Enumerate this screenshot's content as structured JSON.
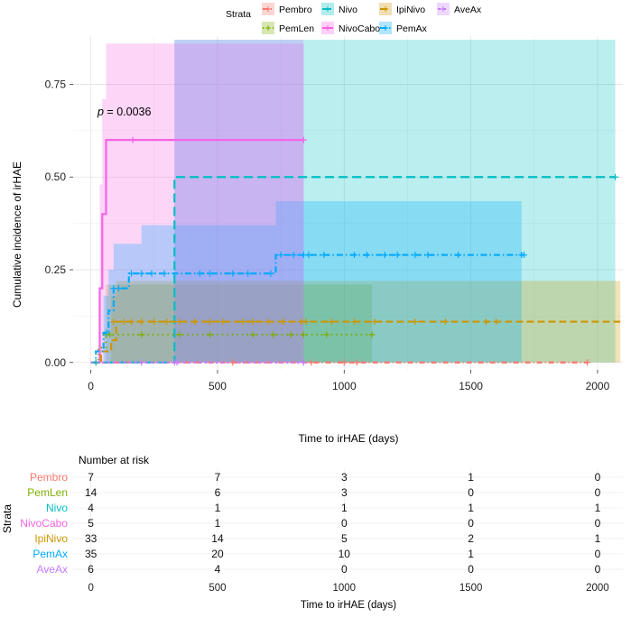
{
  "chart_data": [
    {
      "type": "line",
      "subtype": "cumulative-incidence-step",
      "title": "",
      "xlabel": "Time to irHAE (days)",
      "ylabel": "Cumulative incidence of irHAE",
      "xlim": [
        -70,
        2100
      ],
      "ylim": [
        -0.02,
        0.88
      ],
      "x_ticks": [
        0,
        500,
        1000,
        1500,
        2000
      ],
      "y_ticks": [
        0.0,
        0.25,
        0.5,
        0.75
      ],
      "x_tick_labels": [
        "0",
        "500",
        "1000",
        "1500",
        "2000"
      ],
      "y_tick_labels": [
        "0.00",
        "0.25",
        "0.50",
        "0.75"
      ],
      "grid": true,
      "annotation": {
        "prefix": "p",
        "text": " = 0.0036",
        "x": 30,
        "y": 0.735
      },
      "legend": {
        "title": "Strata",
        "placement": "top",
        "labels": [
          "Pembro",
          "Nivo",
          "IpiNivo",
          "AveAx",
          "PemLen",
          "NivoCabo",
          "PemAx"
        ]
      },
      "series": [
        {
          "name": "Pembro",
          "color": "#F8766D",
          "dash": "6 3 1 3",
          "steps": [
            [
              0,
              0
            ],
            [
              1960,
              0
            ]
          ],
          "censors": [
            [
              20,
              0
            ],
            [
              560,
              0
            ],
            [
              870,
              0
            ],
            [
              1000,
              0
            ],
            [
              1050,
              0
            ],
            [
              1960,
              0
            ]
          ],
          "ci_steps": []
        },
        {
          "name": "PemLen",
          "color": "#7CAE00",
          "dash": "1.5 4",
          "steps": [
            [
              0,
              0
            ],
            [
              30,
              0.04
            ],
            [
              60,
              0.075
            ],
            [
              1110,
              0.075
            ]
          ],
          "censors": [
            [
              60,
              0.075
            ],
            [
              75,
              0.075
            ],
            [
              200,
              0.075
            ],
            [
              350,
              0.075
            ],
            [
              470,
              0.075
            ],
            [
              640,
              0.075
            ],
            [
              720,
              0.075
            ],
            [
              790,
              0.075
            ],
            [
              840,
              0.075
            ],
            [
              930,
              0.075
            ],
            [
              1110,
              0.075
            ]
          ],
          "ci_steps": [
            [
              0,
              0,
              0
            ],
            [
              60,
              0,
              0.21
            ],
            [
              1110,
              0,
              0.21
            ]
          ]
        },
        {
          "name": "Nivo",
          "color": "#00BFC4",
          "dash": "10 5",
          "steps": [
            [
              0,
              0
            ],
            [
              330,
              0.5
            ],
            [
              2070,
              0.5
            ]
          ],
          "censors": [
            [
              20,
              0
            ],
            [
              2070,
              0.5
            ]
          ],
          "ci_steps": [
            [
              0,
              0,
              0
            ],
            [
              330,
              0,
              0.87
            ],
            [
              2070,
              0,
              0.87
            ]
          ]
        },
        {
          "name": "NivoCabo",
          "color": "#F564E3",
          "dash": "",
          "steps": [
            [
              0,
              0
            ],
            [
              35,
              0.2
            ],
            [
              45,
              0.4
            ],
            [
              60,
              0.6
            ],
            [
              840,
              0.6
            ]
          ],
          "censors": [
            [
              165,
              0.6
            ],
            [
              840,
              0.6
            ]
          ],
          "ci_steps": [
            [
              0,
              0,
              0
            ],
            [
              35,
              0,
              0.48
            ],
            [
              45,
              0,
              0.71
            ],
            [
              60,
              0,
              0.86
            ],
            [
              840,
              0,
              0.86
            ]
          ]
        },
        {
          "name": "IpiNivo",
          "color": "#CD9600",
          "dash": "8 4",
          "steps": [
            [
              0,
              0
            ],
            [
              40,
              0.03
            ],
            [
              80,
              0.06
            ],
            [
              100,
              0.11
            ],
            [
              2090,
              0.11
            ]
          ],
          "censors": [
            [
              90,
              0.11
            ],
            [
              130,
              0.11
            ],
            [
              160,
              0.11
            ],
            [
              200,
              0.11
            ],
            [
              250,
              0.11
            ],
            [
              300,
              0.11
            ],
            [
              350,
              0.11
            ],
            [
              410,
              0.11
            ],
            [
              470,
              0.11
            ],
            [
              520,
              0.11
            ],
            [
              600,
              0.11
            ],
            [
              640,
              0.11
            ],
            [
              700,
              0.11
            ],
            [
              760,
              0.11
            ],
            [
              830,
              0.11
            ],
            [
              850,
              0.11
            ],
            [
              950,
              0.11
            ],
            [
              1040,
              0.11
            ],
            [
              1120,
              0.11
            ],
            [
              1280,
              0.11
            ],
            [
              1400,
              0.11
            ],
            [
              1560,
              0.11
            ],
            [
              1600,
              0.11
            ]
          ],
          "ci_steps": [
            [
              0,
              0,
              0
            ],
            [
              80,
              0,
              0.18
            ],
            [
              100,
              0,
              0.22
            ],
            [
              2090,
              0,
              0.22
            ]
          ]
        },
        {
          "name": "PemAx",
          "color": "#00A9FF",
          "dash": "7 3 1.5 3",
          "steps": [
            [
              0,
              0
            ],
            [
              20,
              0.03
            ],
            [
              50,
              0.08
            ],
            [
              70,
              0.14
            ],
            [
              90,
              0.2
            ],
            [
              150,
              0.24
            ],
            [
              330,
              0.24
            ],
            [
              730,
              0.29
            ],
            [
              1710,
              0.29
            ]
          ],
          "censors": [
            [
              60,
              0.08
            ],
            [
              90,
              0.2
            ],
            [
              110,
              0.2
            ],
            [
              160,
              0.24
            ],
            [
              200,
              0.24
            ],
            [
              240,
              0.24
            ],
            [
              290,
              0.24
            ],
            [
              430,
              0.24
            ],
            [
              470,
              0.24
            ],
            [
              560,
              0.24
            ],
            [
              620,
              0.24
            ],
            [
              710,
              0.24
            ],
            [
              750,
              0.29
            ],
            [
              800,
              0.29
            ],
            [
              840,
              0.29
            ],
            [
              860,
              0.29
            ],
            [
              920,
              0.29
            ],
            [
              1040,
              0.29
            ],
            [
              1090,
              0.29
            ],
            [
              1160,
              0.29
            ],
            [
              1210,
              0.29
            ],
            [
              1280,
              0.29
            ],
            [
              1330,
              0.29
            ],
            [
              1450,
              0.29
            ],
            [
              1700,
              0.29
            ],
            [
              1710,
              0.29
            ]
          ],
          "ci_steps": [
            [
              0,
              0,
              0
            ],
            [
              50,
              0,
              0.18
            ],
            [
              70,
              0,
              0.25
            ],
            [
              90,
              0,
              0.32
            ],
            [
              200,
              0,
              0.37
            ],
            [
              330,
              0,
              0.37
            ],
            [
              730,
              0,
              0.435
            ],
            [
              1700,
              0,
              0.435
            ]
          ]
        },
        {
          "name": "AveAx",
          "color": "#C77CFF",
          "dash": "3 3",
          "steps": [
            [
              0,
              0
            ],
            [
              840,
              0
            ]
          ],
          "censors": [
            [
              200,
              0
            ],
            [
              330,
              0
            ],
            [
              340,
              0
            ],
            [
              840,
              0
            ]
          ],
          "ci_steps": [
            [
              0,
              0,
              0
            ],
            [
              330,
              0,
              0.87
            ],
            [
              840,
              0,
              0.87
            ]
          ]
        }
      ]
    },
    {
      "type": "table",
      "title": "Number at risk",
      "xlabel": "Time to irHAE (days)",
      "ylabel": "Strata",
      "x_ticks": [
        0,
        500,
        1000,
        1500,
        2000
      ],
      "x_tick_labels": [
        "0",
        "500",
        "1000",
        "1500",
        "2000"
      ],
      "rows": [
        {
          "name": "Pembro",
          "color": "#F8766D",
          "values": [
            "7",
            "7",
            "3",
            "1",
            "0"
          ]
        },
        {
          "name": "PemLen",
          "color": "#7CAE00",
          "values": [
            "14",
            "6",
            "3",
            "0",
            "0"
          ]
        },
        {
          "name": "Nivo",
          "color": "#00BFC4",
          "values": [
            "4",
            "1",
            "1",
            "1",
            "1"
          ]
        },
        {
          "name": "NivoCabo",
          "color": "#F564E3",
          "values": [
            "5",
            "1",
            "0",
            "0",
            "0"
          ]
        },
        {
          "name": "IpiNivo",
          "color": "#CD9600",
          "values": [
            "33",
            "14",
            "5",
            "2",
            "1"
          ]
        },
        {
          "name": "PemAx",
          "color": "#00A9FF",
          "values": [
            "35",
            "20",
            "10",
            "1",
            "0"
          ]
        },
        {
          "name": "AveAx",
          "color": "#C77CFF",
          "values": [
            "6",
            "4",
            "0",
            "0",
            "0"
          ]
        }
      ]
    }
  ]
}
